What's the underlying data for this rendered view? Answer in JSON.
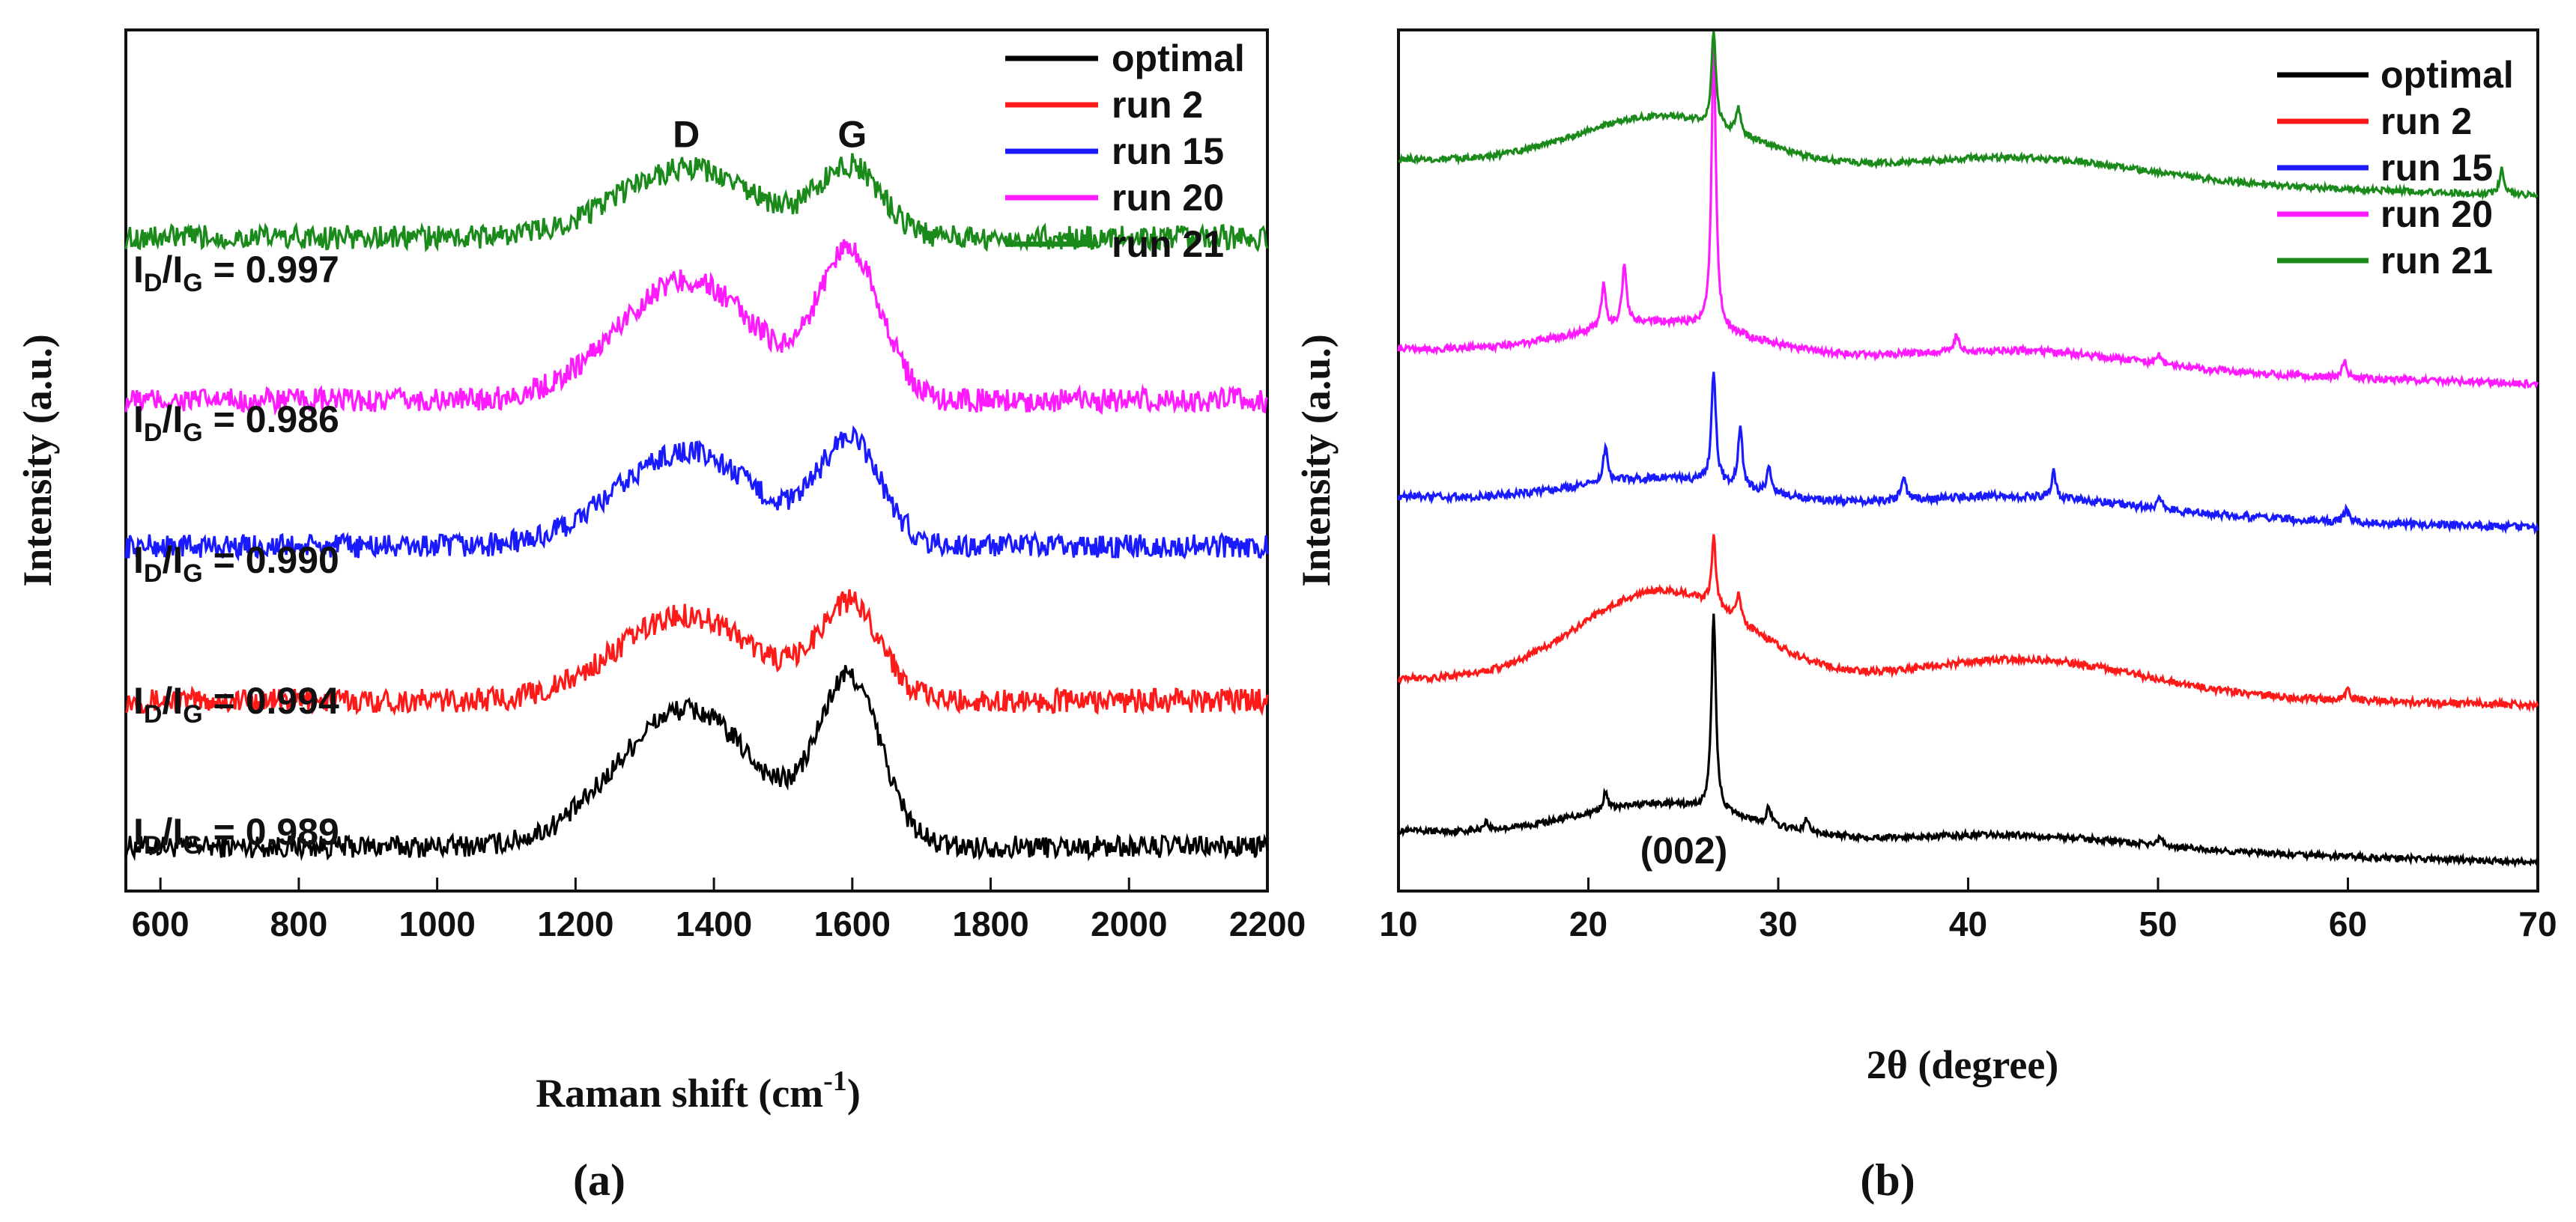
{
  "chart_data": [
    {
      "panel": "(a)",
      "panel_label_open": "(",
      "panel_label_letter": "a",
      "panel_label_close": ")",
      "type": "line",
      "xlabel_main": "Raman shift (cm",
      "xlabel_sup": "-1",
      "xlabel_close": ")",
      "ylabel": "Intensity (a.u.)",
      "xlim": [
        550,
        2200
      ],
      "xticks": [
        600,
        800,
        1000,
        1200,
        1400,
        1600,
        1800,
        2000,
        2200
      ],
      "x_tick_labels": [
        "600",
        "800",
        "1000",
        "1200",
        "1400",
        "1600",
        "1800",
        "2000",
        "2200"
      ],
      "ylim": [
        0,
        100
      ],
      "y_ticks_shown": false,
      "legend_position": "top-right",
      "peak_labels": [
        {
          "text": "D",
          "x": 1360
        },
        {
          "text": "G",
          "x": 1600
        }
      ],
      "series": [
        {
          "name": "optimal",
          "color": "#000000",
          "offset": 5,
          "D_height": 16,
          "G_height": 19,
          "noise": 1.3,
          "ratio_prefix": "I",
          "ratio_sub1": "D",
          "ratio_mid": "/I",
          "ratio_sub2": "G",
          "ratio_value": " = 0.989"
        },
        {
          "name": "run 2",
          "color": "#ff1a1a",
          "offset": 22,
          "D_height": 10,
          "G_height": 11,
          "noise": 1.4,
          "ratio_prefix": "I",
          "ratio_sub1": "D",
          "ratio_mid": "/I",
          "ratio_sub2": "G",
          "ratio_value": " = 0.994"
        },
        {
          "name": "run 15",
          "color": "#1a1aff",
          "offset": 40,
          "D_height": 11,
          "G_height": 12,
          "noise": 1.4,
          "ratio_prefix": "I",
          "ratio_sub1": "D",
          "ratio_mid": "/I",
          "ratio_sub2": "G",
          "ratio_value": " = 0.990"
        },
        {
          "name": "run 20",
          "color": "#ff1aff",
          "offset": 57,
          "D_height": 14,
          "G_height": 17,
          "noise": 1.4,
          "ratio_prefix": "I",
          "ratio_sub1": "D",
          "ratio_mid": "/I",
          "ratio_sub2": "G",
          "ratio_value": " = 0.986"
        },
        {
          "name": "run 21",
          "color": "#1a8a1a",
          "offset": 76,
          "D_height": 8,
          "G_height": 8,
          "noise": 1.4,
          "ratio_prefix": "I",
          "ratio_sub1": "D",
          "ratio_mid": "/I",
          "ratio_sub2": "G",
          "ratio_value": " = 0.997"
        }
      ]
    },
    {
      "panel": "(b)",
      "panel_label_open": "(",
      "panel_label_letter": "b",
      "panel_label_close": ")",
      "type": "line",
      "xlabel": "2θ (degree)",
      "ylabel": "Intensity (a.u.)",
      "xlim": [
        10,
        70
      ],
      "xticks": [
        10,
        20,
        30,
        40,
        50,
        60,
        70
      ],
      "x_tick_labels": [
        "10",
        "20",
        "30",
        "40",
        "50",
        "60",
        "70"
      ],
      "ylim": [
        0,
        100
      ],
      "y_ticks_shown": false,
      "legend_position": "top-right",
      "annotation": {
        "text": "(002)",
        "x": 27,
        "y": 3
      },
      "series": [
        {
          "name": "optimal",
          "color": "#000000",
          "offset": 5,
          "hump": 4,
          "hump2": 1.5,
          "end_drop": 6,
          "noise": 0.35,
          "peaks": [
            [
              26.6,
              23
            ],
            [
              20.9,
              2
            ],
            [
              14.6,
              1
            ],
            [
              29.5,
              2
            ],
            [
              31.5,
              1.5
            ],
            [
              50.1,
              1
            ]
          ]
        },
        {
          "name": "run 2",
          "color": "#ff1a1a",
          "offset": 23,
          "hump": 11,
          "hump2": 4,
          "end_drop": 5,
          "noise": 0.4,
          "peaks": [
            [
              26.6,
              8
            ],
            [
              27.9,
              3
            ],
            [
              60.0,
              1.2
            ]
          ]
        },
        {
          "name": "run 15",
          "color": "#1a1aff",
          "offset": 44,
          "hump": 3,
          "hump2": 2,
          "end_drop": 6,
          "noise": 0.45,
          "peaks": [
            [
              26.6,
              13
            ],
            [
              20.9,
              4
            ],
            [
              28.0,
              7
            ],
            [
              29.5,
              3
            ],
            [
              36.6,
              3
            ],
            [
              44.5,
              3
            ],
            [
              50.1,
              1.5
            ],
            [
              59.9,
              1.5
            ]
          ]
        },
        {
          "name": "run 20",
          "color": "#ff1aff",
          "offset": 61,
          "hump": 4,
          "hump2": 2,
          "end_drop": 7,
          "noise": 0.4,
          "peaks": [
            [
              26.6,
              33
            ],
            [
              20.8,
              5
            ],
            [
              21.9,
              7
            ],
            [
              39.4,
              2
            ],
            [
              50.1,
              1
            ],
            [
              59.8,
              2
            ]
          ]
        },
        {
          "name": "run 21",
          "color": "#1a8a1a",
          "offset": 83,
          "hump": 6,
          "hump2": 2.5,
          "end_drop": 7,
          "noise": 0.35,
          "peaks": [
            [
              26.6,
              11
            ],
            [
              27.9,
              3
            ],
            [
              68.1,
              3
            ]
          ]
        }
      ]
    }
  ]
}
